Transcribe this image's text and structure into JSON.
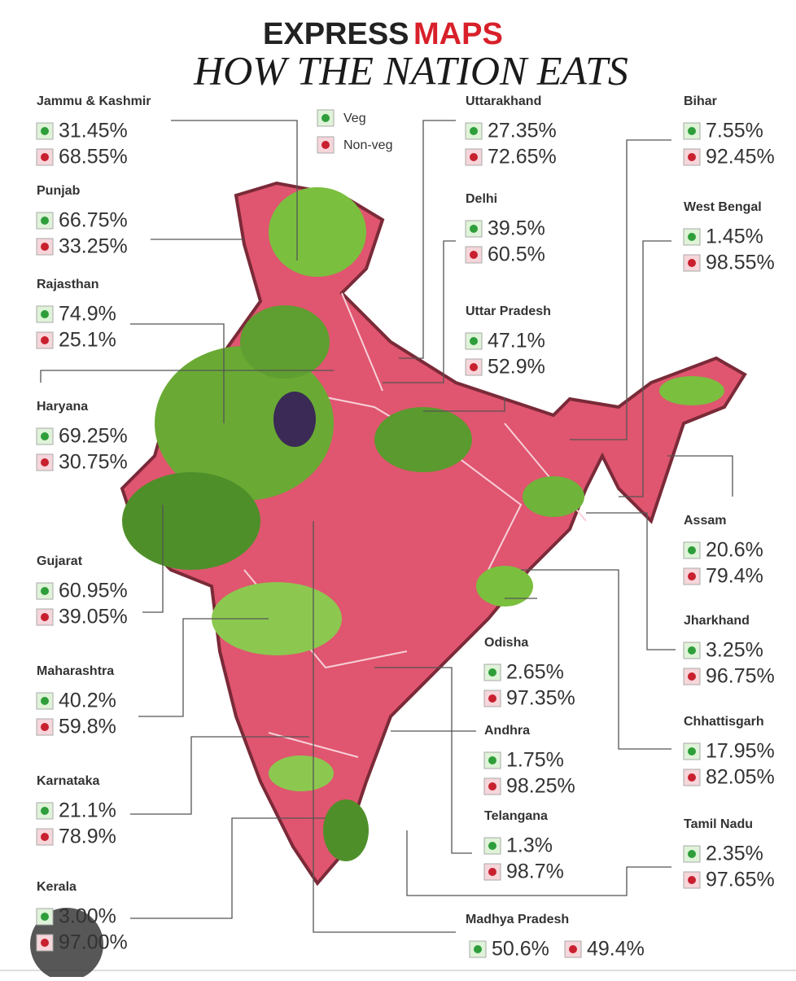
{
  "header": {
    "brand": "EXPRESS",
    "brand_accent": "MAPS",
    "title": "HOW THE NATION EATS"
  },
  "legend": {
    "veg": "Veg",
    "non_veg": "Non-veg"
  },
  "states": [
    {
      "name": "Jammu & Kashmir",
      "veg": "31.45%",
      "non_veg": "68.55%"
    },
    {
      "name": "Punjab",
      "veg": "66.75%",
      "non_veg": "33.25%"
    },
    {
      "name": "Rajasthan",
      "veg": "74.9%",
      "non_veg": "25.1%"
    },
    {
      "name": "Haryana",
      "veg": "69.25%",
      "non_veg": "30.75%"
    },
    {
      "name": "Gujarat",
      "veg": "60.95%",
      "non_veg": "39.05%"
    },
    {
      "name": "Maharashtra",
      "veg": "40.2%",
      "non_veg": "59.8%"
    },
    {
      "name": "Karnataka",
      "veg": "21.1%",
      "non_veg": "78.9%"
    },
    {
      "name": "Kerala",
      "veg": "3.00%",
      "non_veg": "97.00%"
    },
    {
      "name": "Uttarakhand",
      "veg": "27.35%",
      "non_veg": "72.65%"
    },
    {
      "name": "Delhi",
      "veg": "39.5%",
      "non_veg": "60.5%"
    },
    {
      "name": "Uttar Pradesh",
      "veg": "47.1%",
      "non_veg": "52.9%"
    },
    {
      "name": "Odisha",
      "veg": "2.65%",
      "non_veg": "97.35%"
    },
    {
      "name": "Andhra",
      "veg": "1.75%",
      "non_veg": "98.25%"
    },
    {
      "name": "Telangana",
      "veg": "1.3%",
      "non_veg": "98.7%"
    },
    {
      "name": "Madhya Pradesh",
      "veg": "50.6%",
      "non_veg": "49.4%"
    },
    {
      "name": "Bihar",
      "veg": "7.55%",
      "non_veg": "92.45%"
    },
    {
      "name": "West Bengal",
      "veg": "1.45%",
      "non_veg": "98.55%"
    },
    {
      "name": "Assam",
      "veg": "20.6%",
      "non_veg": "79.4%"
    },
    {
      "name": "Jharkhand",
      "veg": "3.25%",
      "non_veg": "96.75%"
    },
    {
      "name": "Chhattisgarh",
      "veg": "17.95%",
      "non_veg": "82.05%"
    },
    {
      "name": "Tamil Nadu",
      "veg": "2.35%",
      "non_veg": "97.65%"
    }
  ]
}
